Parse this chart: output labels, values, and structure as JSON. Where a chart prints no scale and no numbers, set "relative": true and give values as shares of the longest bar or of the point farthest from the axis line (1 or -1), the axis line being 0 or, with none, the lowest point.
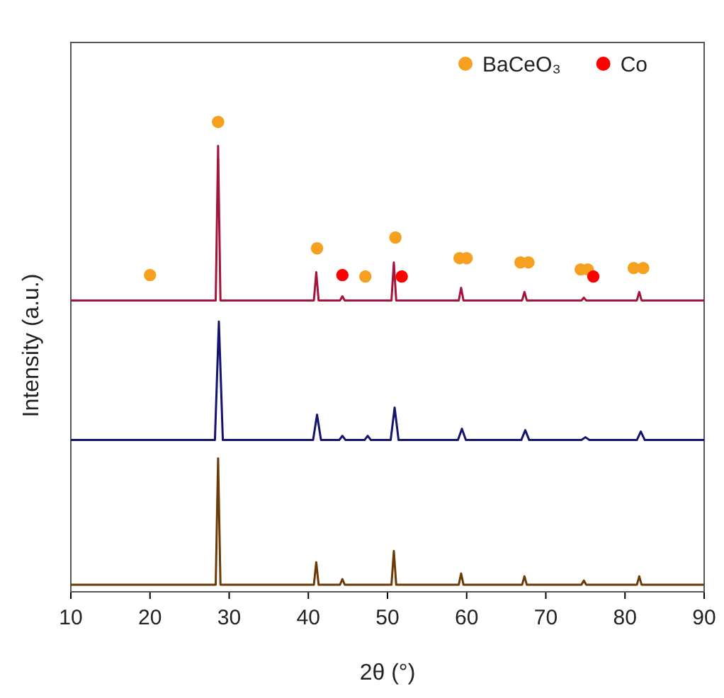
{
  "chart_data": {
    "type": "line",
    "relative": true,
    "xlabel": "2θ (°)",
    "ylabel": "Intensity (a.u.)",
    "xlim": [
      10,
      90
    ],
    "xticks": [
      10,
      20,
      30,
      40,
      50,
      60,
      70,
      80,
      90
    ],
    "tick_labels": "x",
    "legend": "top right",
    "series": [
      {
        "color": "#a5143c",
        "x": [
          10,
          28.3,
          28.6,
          28.9,
          40.7,
          41.0,
          41.3,
          44.0,
          44.3,
          44.6,
          50.5,
          50.8,
          51.1,
          59.0,
          59.3,
          59.6,
          67.0,
          67.3,
          67.6,
          74.5,
          74.8,
          75.1,
          81.5,
          81.8,
          82.1,
          90
        ],
        "values": [
          0.62,
          0.62,
          0.949,
          0.62,
          0.62,
          0.68,
          0.62,
          0.62,
          0.629,
          0.62,
          0.62,
          0.701,
          0.62,
          0.62,
          0.647,
          0.62,
          0.62,
          0.638,
          0.62,
          0.62,
          0.626,
          0.62,
          0.62,
          0.638,
          0.62,
          0.62
        ]
      },
      {
        "color": "#13146e",
        "x": [
          10,
          28.2,
          28.7,
          29.2,
          40.6,
          41.1,
          41.6,
          43.9,
          44.3,
          44.7,
          47.1,
          47.5,
          47.9,
          50.4,
          50.9,
          51.4,
          58.9,
          59.4,
          59.9,
          66.9,
          67.4,
          67.9,
          74.5,
          75.0,
          75.5,
          81.5,
          82.0,
          82.5,
          90
        ],
        "values": [
          0.323,
          0.323,
          0.575,
          0.323,
          0.323,
          0.377,
          0.323,
          0.323,
          0.332,
          0.323,
          0.323,
          0.332,
          0.323,
          0.323,
          0.392,
          0.323,
          0.323,
          0.347,
          0.323,
          0.323,
          0.344,
          0.323,
          0.323,
          0.329,
          0.323,
          0.323,
          0.341,
          0.323,
          0.323
        ]
      },
      {
        "color": "#6b3a06",
        "x": [
          10,
          28.3,
          28.6,
          28.9,
          40.7,
          41.0,
          41.3,
          44.0,
          44.3,
          44.6,
          50.5,
          50.8,
          51.1,
          59.0,
          59.3,
          59.6,
          67.0,
          67.3,
          67.6,
          74.5,
          74.8,
          75.1,
          81.5,
          81.8,
          82.1,
          90
        ],
        "values": [
          0.015,
          0.015,
          0.284,
          0.015,
          0.015,
          0.063,
          0.015,
          0.015,
          0.027,
          0.015,
          0.015,
          0.087,
          0.015,
          0.015,
          0.039,
          0.015,
          0.015,
          0.033,
          0.015,
          0.015,
          0.024,
          0.015,
          0.015,
          0.033,
          0.015,
          0.015
        ]
      },
      {
        "type": "scatter",
        "name": "BaCeO₃",
        "color": "#f5a01e",
        "marker": "circle",
        "x": [
          20.0,
          28.6,
          41.1,
          47.2,
          51.0,
          59.1,
          60.0,
          66.8,
          67.8,
          74.4,
          75.3,
          81.1,
          82.3
        ],
        "values": [
          0.674,
          1.0,
          0.731,
          0.671,
          0.754,
          0.71,
          0.71,
          0.701,
          0.701,
          0.686,
          0.686,
          0.689,
          0.689
        ]
      },
      {
        "type": "scatter",
        "name": "Co",
        "color": "#ff0000",
        "marker": "circle",
        "x": [
          44.3,
          51.8,
          76.0
        ],
        "values": [
          0.674,
          0.671,
          0.671
        ]
      }
    ]
  }
}
